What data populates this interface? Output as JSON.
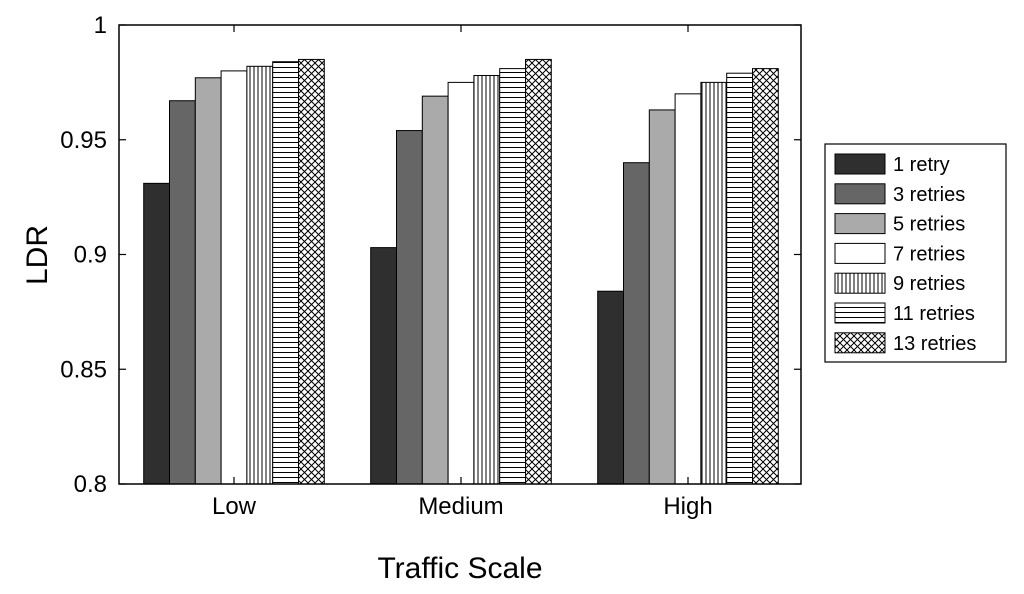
{
  "chart_data": {
    "type": "bar",
    "title": "",
    "xlabel": "Traffic Scale",
    "ylabel": "LDR",
    "ylim": [
      0.8,
      1.0
    ],
    "yticks": [
      0.8,
      0.85,
      0.9,
      0.95,
      1.0
    ],
    "ytick_labels": [
      "0.8",
      "0.85",
      "0.9",
      "0.95",
      "1"
    ],
    "grid": false,
    "legend_position": "right",
    "categories": [
      "Low",
      "Medium",
      "High"
    ],
    "series": [
      {
        "name": "1 retry",
        "fill": "#2f2f2f",
        "pattern": "solid",
        "values": [
          0.931,
          0.903,
          0.884
        ]
      },
      {
        "name": "3 retries",
        "fill": "#666666",
        "pattern": "solid",
        "values": [
          0.967,
          0.954,
          0.94
        ]
      },
      {
        "name": "5 retries",
        "fill": "#aaaaaa",
        "pattern": "solid",
        "values": [
          0.977,
          0.969,
          0.963
        ]
      },
      {
        "name": "7 retries",
        "fill": "#ffffff",
        "pattern": "solid",
        "values": [
          0.98,
          0.975,
          0.97
        ]
      },
      {
        "name": "9 retries",
        "fill": "#ffffff",
        "pattern": "vertical",
        "values": [
          0.982,
          0.978,
          0.975
        ]
      },
      {
        "name": "11 retries",
        "fill": "#ffffff",
        "pattern": "horizontal",
        "values": [
          0.984,
          0.981,
          0.979
        ]
      },
      {
        "name": "13 retries",
        "fill": "#ffffff",
        "pattern": "crosshatch",
        "values": [
          0.985,
          0.985,
          0.981
        ]
      }
    ]
  }
}
